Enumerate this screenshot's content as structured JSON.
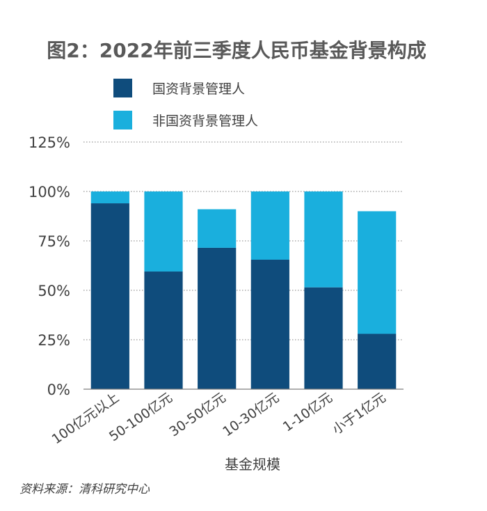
{
  "source": "资料来源：清科研究中心",
  "colors": {
    "dark": "#0f4c7c",
    "light": "#1aafdd"
  },
  "chart_data": {
    "type": "bar",
    "stacked": true,
    "title": "图2：2022年前三季度人民币基金背景构成",
    "xlabel": "基金规模",
    "ylabel": "",
    "ylim": [
      0,
      125
    ],
    "yticks": [
      0,
      25,
      50,
      75,
      100,
      125
    ],
    "ytick_labels": [
      "0%",
      "25%",
      "50%",
      "75%",
      "100%",
      "125%"
    ],
    "grid": true,
    "legend_position": "top-left",
    "categories": [
      "100亿元以上",
      "50-100亿元",
      "30-50亿元",
      "10-30亿元",
      "1-10亿元",
      "小于1亿元"
    ],
    "series": [
      {
        "name": "国资背景管理人",
        "values": [
          94,
          59.5,
          71.5,
          65.5,
          51.5,
          28
        ]
      },
      {
        "name": "非国资背景管理人",
        "values": [
          6,
          40.5,
          19.5,
          34.5,
          48.5,
          62
        ]
      }
    ]
  }
}
